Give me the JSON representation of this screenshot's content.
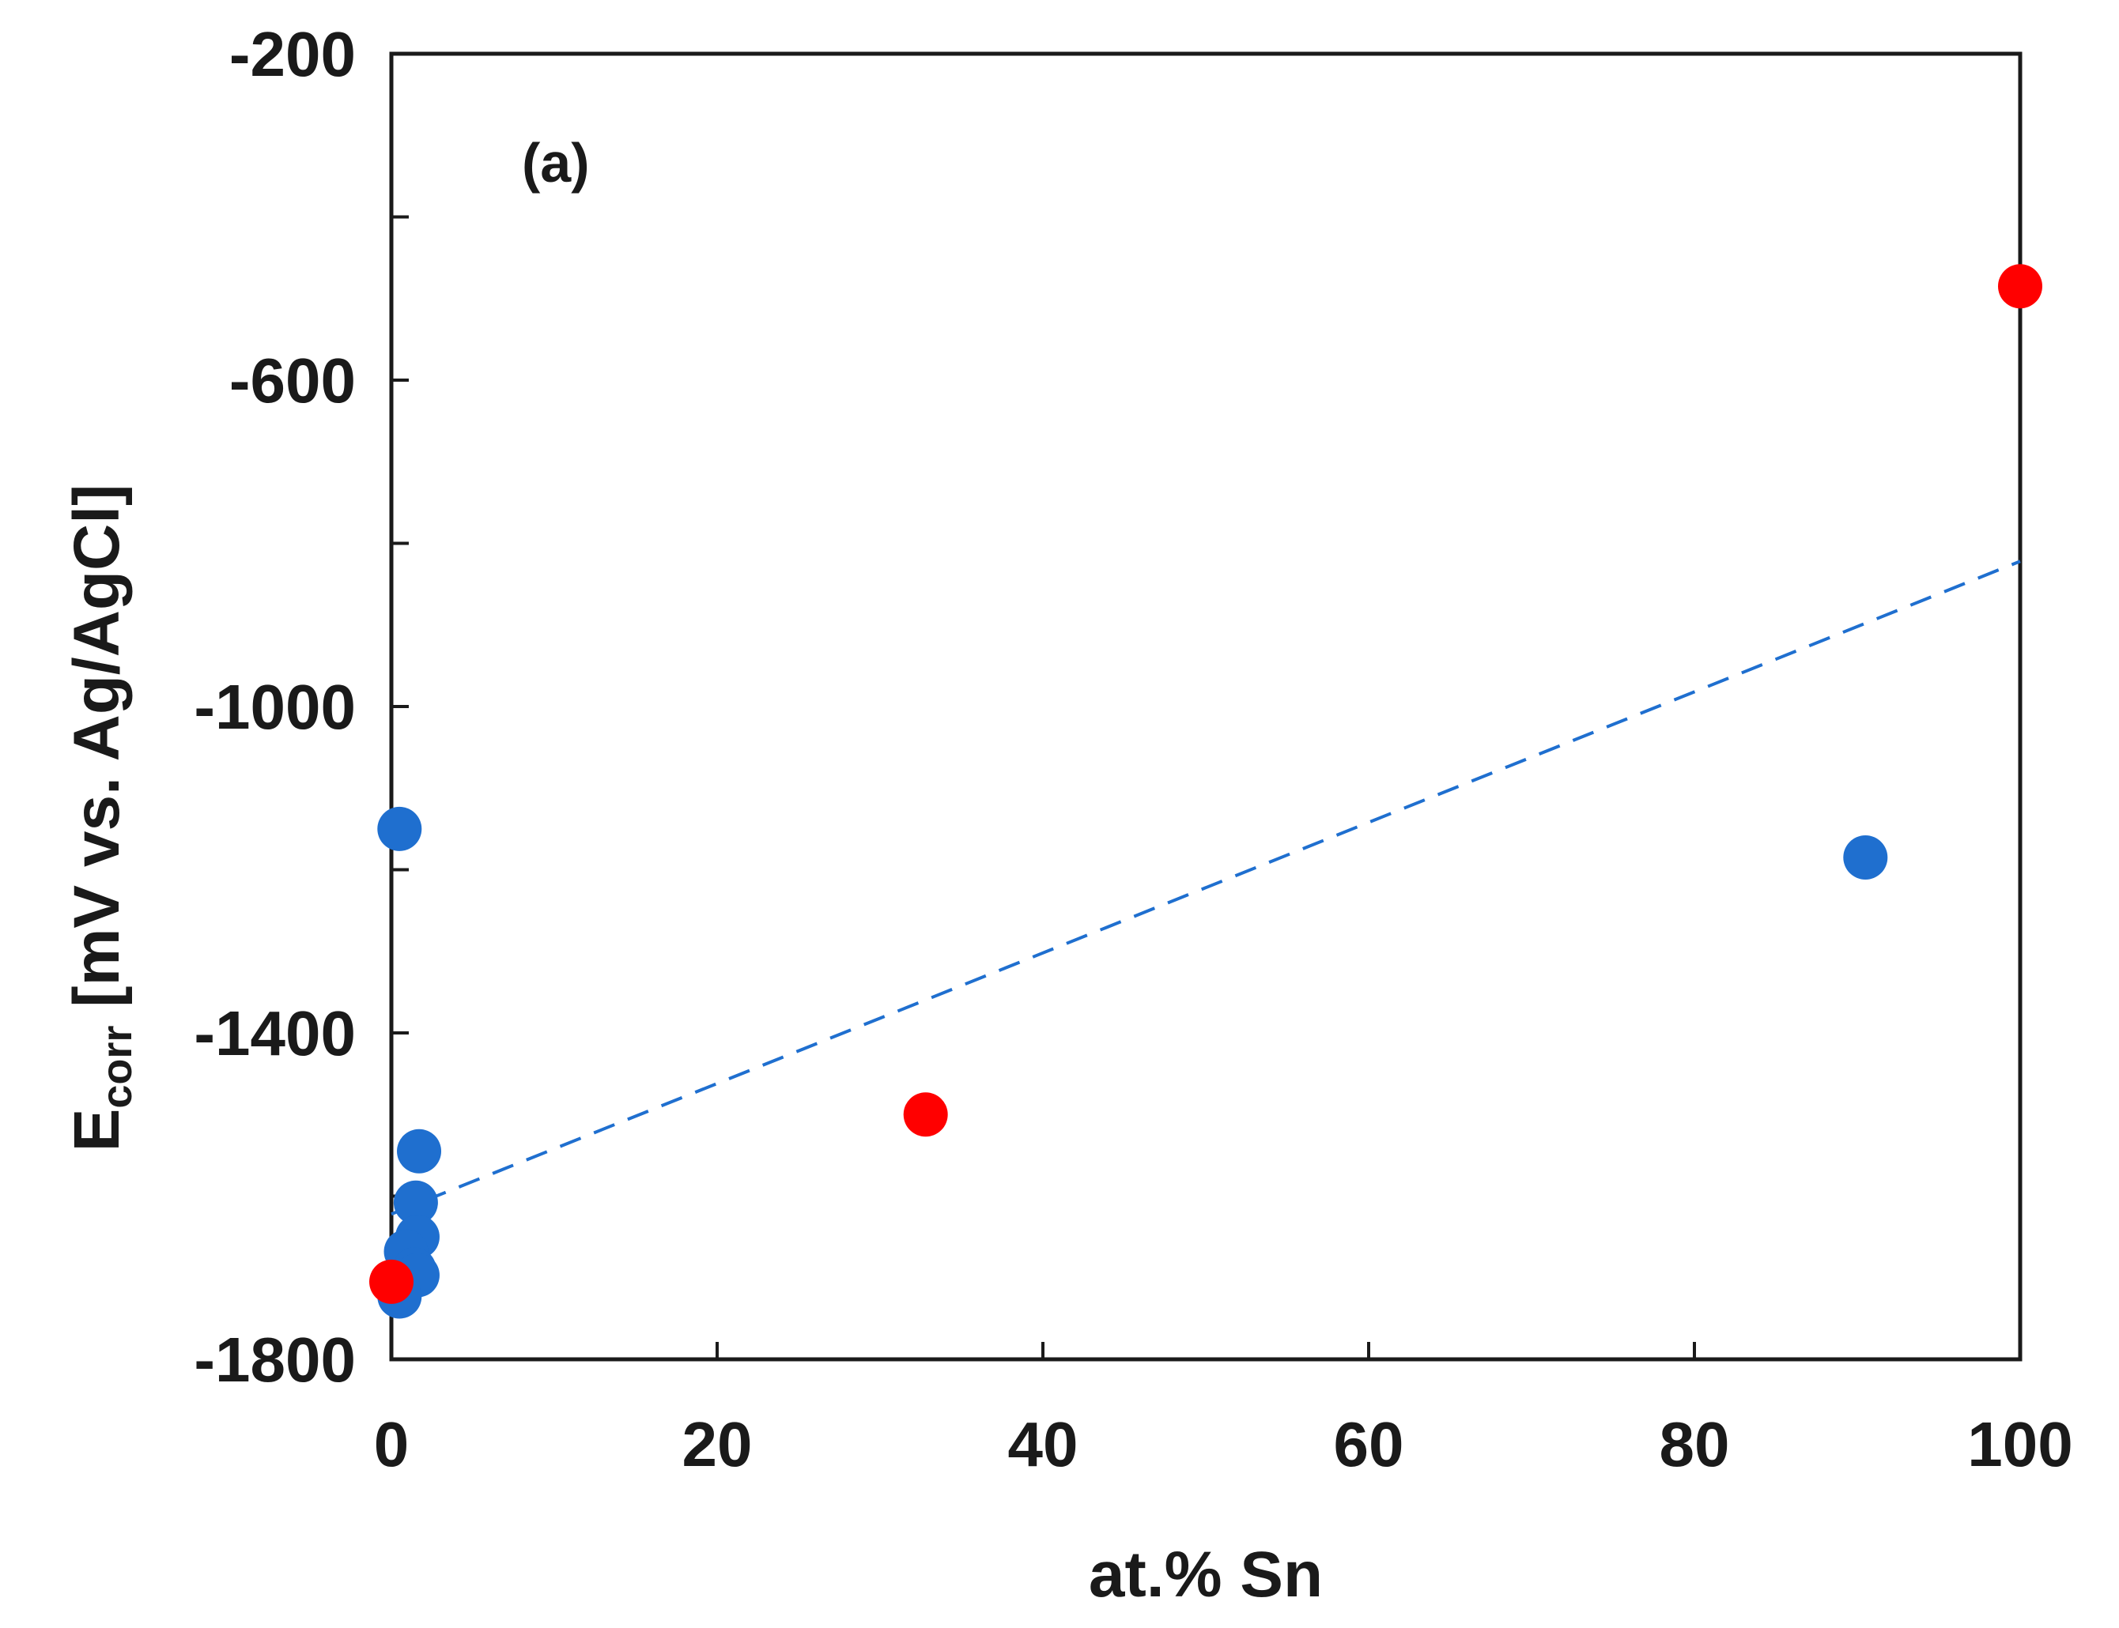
{
  "chart_data": {
    "type": "scatter",
    "panel_label": "(a)",
    "xlabel": "at.% Sn",
    "ylabel": {
      "main": "E",
      "subscript": "corr",
      "rest": " [mV vs. Ag/AgCl]"
    },
    "xlim": [
      0,
      100
    ],
    "ylim": [
      -1800,
      -200
    ],
    "x_ticks": [
      0,
      20,
      40,
      60,
      80,
      100
    ],
    "x_tick_labels": [
      "0",
      "20",
      "40",
      "60",
      "80",
      "100"
    ],
    "y_ticks_major": [
      -1800,
      -1400,
      -1000,
      -600,
      -200
    ],
    "y_tick_labels": [
      "-1800",
      "-1400",
      "-1000",
      "-600",
      "-200"
    ],
    "y_ticks_minor": [
      -1600,
      -1200,
      -800,
      -400
    ],
    "grid": false,
    "series": [
      {
        "name": "blue points",
        "color": "#1f6fcf",
        "points": [
          {
            "x": 0.5,
            "y": -1150
          },
          {
            "x": 90.5,
            "y": -1185
          },
          {
            "x": 1.7,
            "y": -1545
          },
          {
            "x": 1.5,
            "y": -1608
          },
          {
            "x": 1.6,
            "y": -1650
          },
          {
            "x": 0.9,
            "y": -1668
          },
          {
            "x": 1.4,
            "y": -1690
          },
          {
            "x": 1.6,
            "y": -1697
          },
          {
            "x": 0.5,
            "y": -1723
          }
        ]
      },
      {
        "name": "red points",
        "color": "#ff0000",
        "points": [
          {
            "x": 0.0,
            "y": -1705
          },
          {
            "x": 32.8,
            "y": -1500
          },
          {
            "x": 100.0,
            "y": -485
          }
        ]
      }
    ],
    "trendline": {
      "style": "dashed",
      "color": "#1f6fcf",
      "x": [
        0,
        100
      ],
      "y": [
        -1622,
        -822
      ]
    }
  }
}
